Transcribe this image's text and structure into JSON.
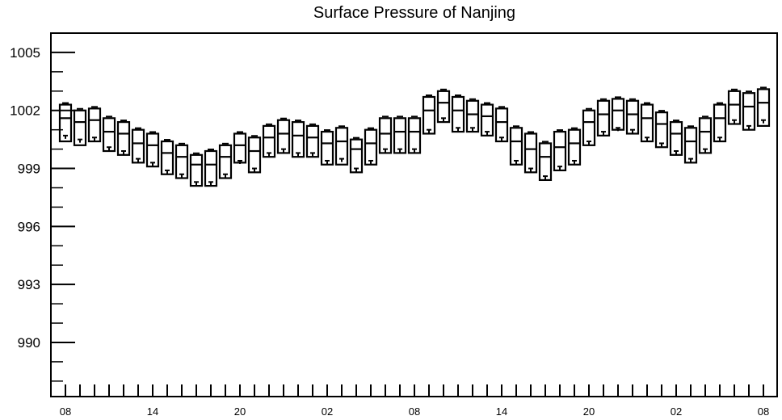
{
  "chart_data": {
    "type": "box",
    "title": "Surface Pressure of Nanjing",
    "xlabel": "",
    "ylabel": "",
    "ylim": [
      987.2,
      1006.0
    ],
    "y_ticks": [
      "1005",
      "1002",
      "999",
      "996",
      "993",
      "990"
    ],
    "y_tick_values": [
      1005,
      1002,
      999,
      996,
      993,
      990
    ],
    "x_tick_labels": [
      "08",
      "14",
      "20",
      "02",
      "08",
      "14",
      "20",
      "02",
      "08"
    ],
    "x_tick_label_index": [
      0,
      6,
      12,
      18,
      24,
      30,
      36,
      42,
      48
    ],
    "grid": false,
    "series": [
      {
        "max": [
          1002.3,
          1002.0,
          1002.1,
          1001.6,
          1001.4,
          1001.0,
          1000.8,
          1000.4,
          1000.2,
          999.7,
          999.9,
          1000.2,
          1000.8,
          1000.6,
          1001.2,
          1001.5,
          1001.4,
          1001.2,
          1000.9,
          1001.1,
          1000.5,
          1001.0,
          1001.6,
          1001.6,
          1001.6,
          1002.7,
          1003.0,
          1002.7,
          1002.5,
          1002.3,
          1002.1,
          1001.1,
          1000.8,
          1000.3,
          1000.9,
          1001.0,
          1002.0,
          1002.5,
          1002.6,
          1002.5,
          1002.3,
          1001.9,
          1001.4,
          1001.1,
          1001.6,
          1002.3,
          1003.0,
          1002.9,
          1003.1
        ],
        "median": [
          1001.6,
          1001.4,
          1001.5,
          1000.9,
          1000.8,
          1000.3,
          1000.2,
          999.8,
          999.6,
          999.2,
          999.2,
          999.6,
          1000.2,
          999.9,
          1000.6,
          1000.8,
          1000.7,
          1000.6,
          1000.3,
          1000.4,
          1000.0,
          1000.3,
          1000.8,
          1000.9,
          1000.9,
          1002.0,
          1002.4,
          1002.0,
          1001.8,
          1001.7,
          1001.4,
          1000.4,
          1000.0,
          999.6,
          1000.1,
          1000.3,
          1001.4,
          1001.8,
          1002.0,
          1001.8,
          1001.6,
          1001.3,
          1000.8,
          1000.4,
          1000.9,
          1001.6,
          1002.3,
          1002.2,
          1002.4
        ],
        "q1": [
          1000.4,
          1000.2,
          1000.4,
          999.9,
          999.7,
          999.3,
          999.1,
          998.7,
          998.5,
          998.1,
          998.1,
          998.5,
          999.3,
          998.8,
          999.6,
          999.8,
          999.6,
          999.6,
          999.2,
          999.2,
          998.8,
          999.2,
          999.8,
          999.8,
          999.8,
          1000.8,
          1001.4,
          1000.9,
          1000.9,
          1000.7,
          1000.4,
          999.2,
          998.8,
          998.4,
          998.9,
          999.2,
          1000.2,
          1000.7,
          1001.0,
          1000.8,
          1000.4,
          1000.1,
          999.7,
          999.3,
          999.8,
          1000.4,
          1001.3,
          1001.0,
          1001.2
        ],
        "min": [
          1000.7,
          1000.5,
          1000.6,
          1000.1,
          999.9,
          999.5,
          999.3,
          998.9,
          998.7,
          998.3,
          998.3,
          998.7,
          999.4,
          999.0,
          999.8,
          1000.0,
          999.8,
          999.8,
          999.4,
          999.5,
          999.0,
          999.4,
          1000.0,
          1000.0,
          1000.0,
          1001.0,
          1001.6,
          1001.1,
          1001.1,
          1000.9,
          1000.6,
          999.4,
          999.0,
          998.6,
          999.1,
          999.4,
          1000.4,
          1000.9,
          1001.1,
          1001.0,
          1000.6,
          1000.3,
          999.9,
          999.5,
          1000.0,
          1000.6,
          1001.5,
          1001.2,
          1001.5
        ]
      }
    ],
    "colors": {
      "stroke": "#000000",
      "background": "#ffffff"
    }
  }
}
